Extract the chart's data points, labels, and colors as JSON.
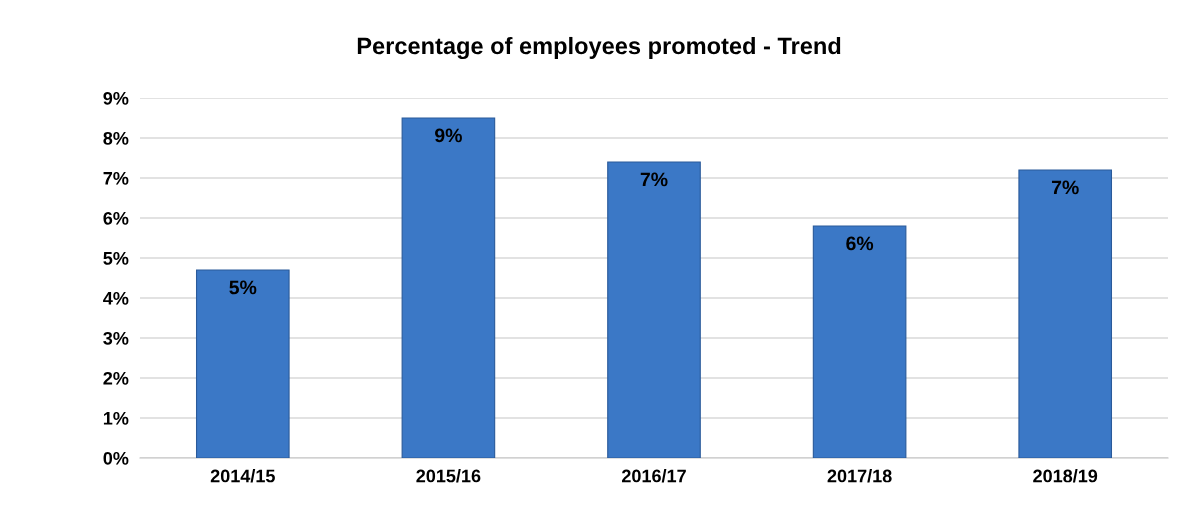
{
  "chart_data": {
    "type": "bar",
    "title": "Percentage of employees promoted - Trend",
    "categories": [
      "2014/15",
      "2015/16",
      "2016/17",
      "2017/18",
      "2018/19"
    ],
    "values": [
      4.7,
      8.5,
      7.4,
      5.8,
      7.2
    ],
    "value_labels": [
      "5%",
      "9%",
      "7%",
      "6%",
      "7%"
    ],
    "color": "#3b78c6",
    "ylim": [
      0,
      9
    ],
    "yticks": [
      {
        "value": 0,
        "label": "0%"
      },
      {
        "value": 1,
        "label": "1%"
      },
      {
        "value": 2,
        "label": "2%"
      },
      {
        "value": 3,
        "label": "3%"
      },
      {
        "value": 4,
        "label": "4%"
      },
      {
        "value": 5,
        "label": "5%"
      },
      {
        "value": 6,
        "label": "6%"
      },
      {
        "value": 7,
        "label": "7%"
      },
      {
        "value": 8,
        "label": "8%"
      },
      {
        "value": 9,
        "label": "9%"
      }
    ],
    "grid": "y",
    "legend": false
  }
}
